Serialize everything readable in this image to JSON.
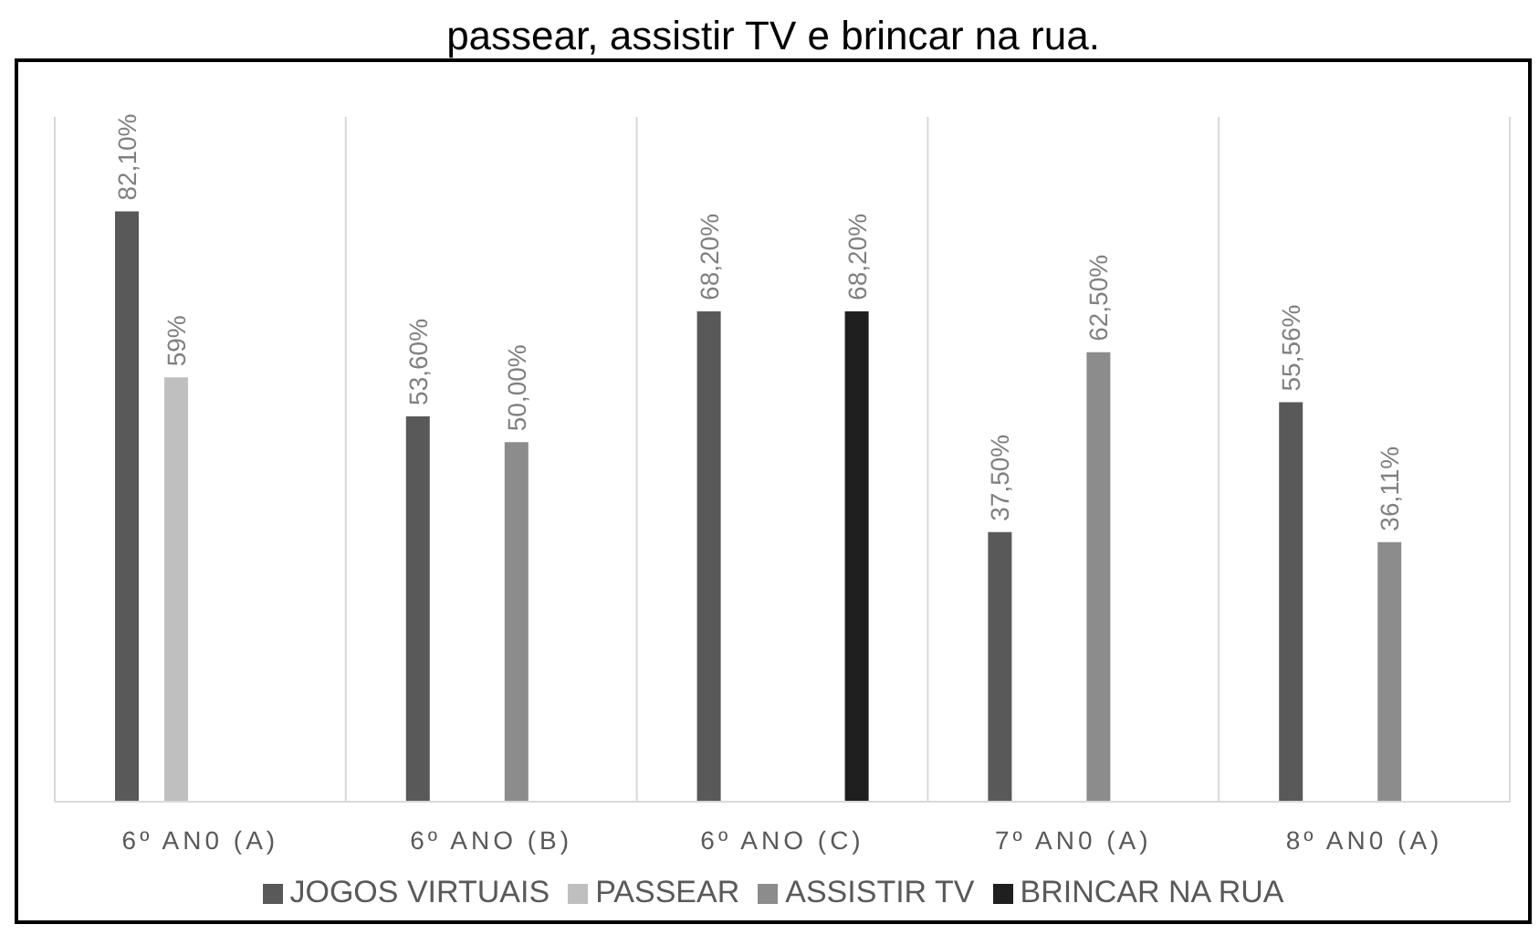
{
  "chart_data": {
    "type": "bar",
    "title": "passear, assistir TV e brincar na rua.",
    "categories": [
      "6º AN0 (A)",
      "6º ANO (B)",
      "6º ANO (C)",
      "7º AN0 (A)",
      "8º AN0 (A)"
    ],
    "series": [
      {
        "name": "JOGOS VIRTUAIS",
        "color": "#595959",
        "values": [
          82.1,
          53.6,
          68.2,
          37.5,
          55.56
        ],
        "value_labels": [
          "82,10%",
          "53,60%",
          "68,20%",
          "37,50%",
          "55,56%"
        ]
      },
      {
        "name": "PASSEAR",
        "color": "#bfbfbf",
        "values": [
          59,
          null,
          null,
          null,
          null
        ],
        "value_labels": [
          "59%",
          null,
          null,
          null,
          null
        ]
      },
      {
        "name": "ASSISTIR TV",
        "color": "#8c8c8c",
        "values": [
          null,
          50,
          null,
          62.5,
          36.11
        ],
        "value_labels": [
          null,
          "50,00%",
          null,
          "62,50%",
          "36,11%"
        ]
      },
      {
        "name": "BRINCAR NA RUA",
        "color": "#1f1f1f",
        "values": [
          null,
          null,
          68.2,
          null,
          null
        ],
        "value_labels": [
          null,
          null,
          "68,20%",
          null,
          null
        ]
      }
    ],
    "grid": "x",
    "legend": "bottom"
  }
}
